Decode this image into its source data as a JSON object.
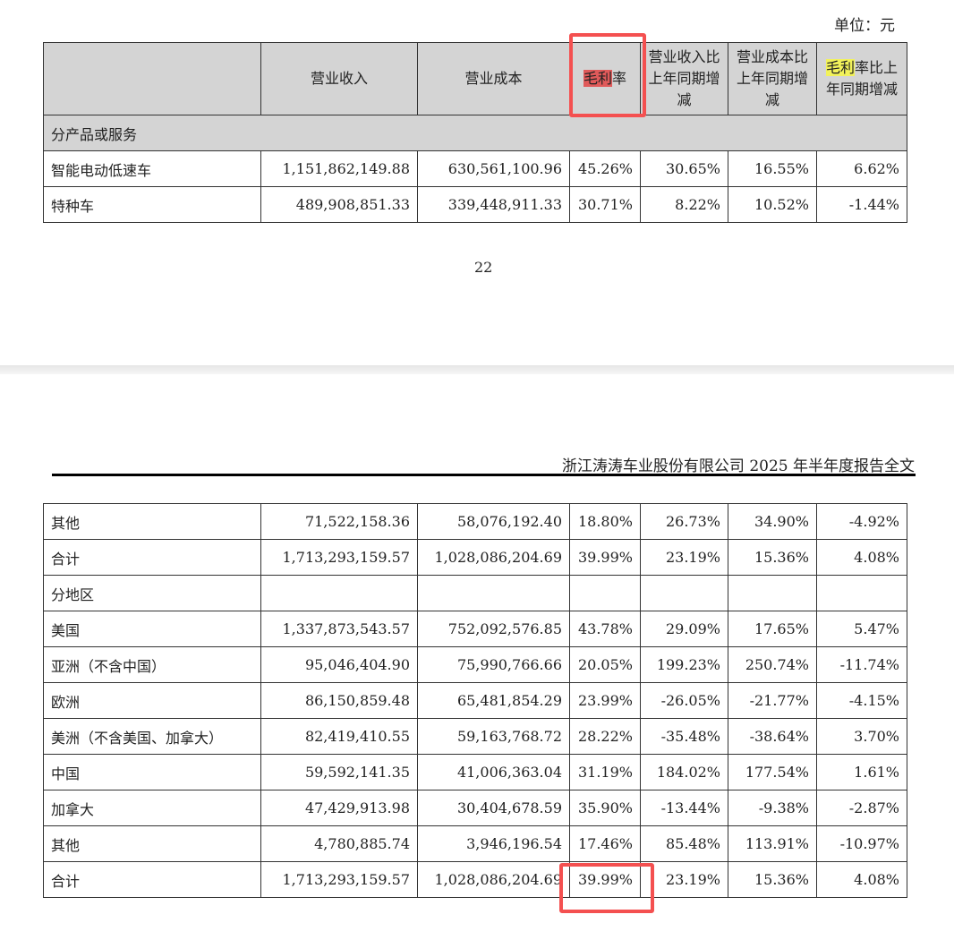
{
  "unit_label": "单位：元",
  "page_number": "22",
  "running_header": "浙江涛涛车业股份有限公司 2025 年半年度报告全文",
  "columns": [
    "",
    "营业收入",
    "营业成本",
    "毛利率",
    "营业收入比上年同期增减",
    "营业成本比上年同期增减",
    "毛利率比上年同期增减"
  ],
  "header_parts": {
    "gm_hl": "毛利",
    "gm_rest": "率",
    "gmchg_hl": "毛利",
    "gmchg_rest": "率比上年同期增减"
  },
  "table1": {
    "group_label": "分产品或服务",
    "rows": [
      [
        "智能电动低速车",
        "1,151,862,149.88",
        "630,561,100.96",
        "45.26%",
        "30.65%",
        "16.55%",
        "6.62%"
      ],
      [
        "特种车",
        "489,908,851.33",
        "339,448,911.33",
        "30.71%",
        "8.22%",
        "10.52%",
        "-1.44%"
      ]
    ]
  },
  "table2": {
    "rows": [
      [
        "其他",
        "71,522,158.36",
        "58,076,192.40",
        "18.80%",
        "26.73%",
        "34.90%",
        "-4.92%"
      ],
      [
        "合计",
        "1,713,293,159.57",
        "1,028,086,204.69",
        "39.99%",
        "23.19%",
        "15.36%",
        "4.08%"
      ],
      [
        "分地区",
        "",
        "",
        "",
        "",
        "",
        ""
      ],
      [
        "美国",
        "1,337,873,543.57",
        "752,092,576.85",
        "43.78%",
        "29.09%",
        "17.65%",
        "5.47%"
      ],
      [
        "亚洲（不含中国）",
        "95,046,404.90",
        "75,990,766.66",
        "20.05%",
        "199.23%",
        "250.74%",
        "-11.74%"
      ],
      [
        "欧洲",
        "86,150,859.48",
        "65,481,854.29",
        "23.99%",
        "-26.05%",
        "-21.77%",
        "-4.15%"
      ],
      [
        "美洲（不含美国、加拿大）",
        "82,419,410.55",
        "59,163,768.72",
        "28.22%",
        "-35.48%",
        "-38.64%",
        "3.70%"
      ],
      [
        "中国",
        "59,592,141.35",
        "41,006,363.04",
        "31.19%",
        "184.02%",
        "177.54%",
        "1.61%"
      ],
      [
        "加拿大",
        "47,429,913.98",
        "30,404,678.59",
        "35.90%",
        "-13.44%",
        "-9.38%",
        "-2.87%"
      ],
      [
        "其他",
        "4,780,885.74",
        "3,946,196.54",
        "17.46%",
        "85.48%",
        "113.91%",
        "-10.97%"
      ],
      [
        "合计",
        "1,713,293,159.57",
        "1,028,086,204.69",
        "39.99%",
        "23.19%",
        "15.36%",
        "4.08%"
      ]
    ]
  },
  "colors": {
    "highlight_red": "#e05a5a",
    "highlight_yellow": "#f2f25a",
    "annotation_box": "#f45050",
    "header_bg": "#d4d4d4"
  }
}
